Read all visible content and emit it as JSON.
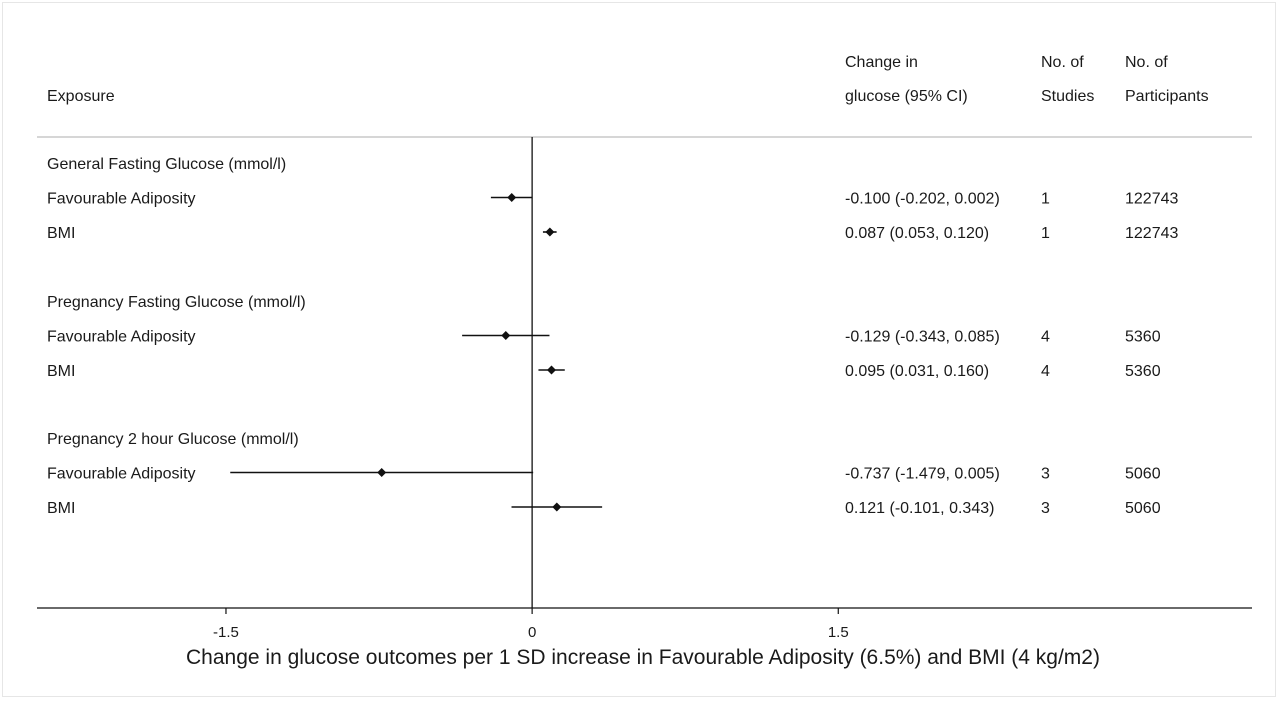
{
  "chart_data": {
    "type": "forest",
    "columns": {
      "exposure": "Exposure",
      "change_line1": "Change in",
      "change_line2": "glucose (95% CI)",
      "studies_line1": "No. of",
      "studies_line2": "Studies",
      "participants_line1": "No. of",
      "participants_line2": "Participants"
    },
    "groups": [
      {
        "title": "General Fasting Glucose (mmol/l)",
        "rows": [
          {
            "label": "Favourable Adiposity",
            "estimate": -0.1,
            "lower": -0.202,
            "upper": 0.002,
            "ci_text": "-0.100 (-0.202, 0.002)",
            "studies": "1",
            "participants": "122743"
          },
          {
            "label": "BMI",
            "estimate": 0.087,
            "lower": 0.053,
            "upper": 0.12,
            "ci_text": "0.087 (0.053, 0.120)",
            "studies": "1",
            "participants": "122743"
          }
        ]
      },
      {
        "title": "Pregnancy Fasting Glucose (mmol/l)",
        "rows": [
          {
            "label": "Favourable Adiposity",
            "estimate": -0.129,
            "lower": -0.343,
            "upper": 0.085,
            "ci_text": "-0.129 (-0.343, 0.085)",
            "studies": "4",
            "participants": "5360"
          },
          {
            "label": "BMI",
            "estimate": 0.095,
            "lower": 0.031,
            "upper": 0.16,
            "ci_text": "0.095 (0.031, 0.160)",
            "studies": "4",
            "participants": "5360"
          }
        ]
      },
      {
        "title": "Pregnancy 2 hour Glucose (mmol/l)",
        "rows": [
          {
            "label": "Favourable Adiposity",
            "estimate": -0.737,
            "lower": -1.479,
            "upper": 0.005,
            "ci_text": "-0.737 (-1.479, 0.005)",
            "studies": "3",
            "participants": "5060"
          },
          {
            "label": "BMI",
            "estimate": 0.121,
            "lower": -0.101,
            "upper": 0.343,
            "ci_text": "0.121 (-0.101, 0.343)",
            "studies": "3",
            "participants": "5060"
          }
        ]
      }
    ],
    "x_ticks": [
      {
        "value": -1.5,
        "label": "-1.5"
      },
      {
        "value": 0,
        "label": "0"
      },
      {
        "value": 1.5,
        "label": "1.5"
      }
    ],
    "xlim": [
      -2.4259,
      3.5271
    ],
    "reference_line": 0,
    "xlabel": "Change in glucose outcomes per 1 SD increase in Favourable Adiposity (6.5%) and BMI (4 kg/m2)"
  }
}
